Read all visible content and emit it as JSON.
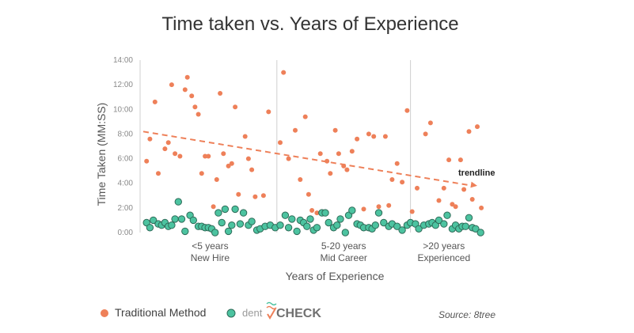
{
  "chart_data": {
    "type": "scatter",
    "title": "Time taken vs. Years of Experience",
    "xlabel": "Years of Experience",
    "ylabel": "Time Taken (MM:SS)",
    "ylim": [
      0,
      14
    ],
    "yticks": [
      "0:00",
      "2:00",
      "4:00",
      "6:00",
      "8:00",
      "10:00",
      "12:00",
      "14:00"
    ],
    "x_is_categorical_scale": true,
    "xlim": [
      0,
      1
    ],
    "groups": [
      {
        "line1": "<5 years",
        "line2": "New Hire",
        "range": [
          0.0,
          0.4
        ]
      },
      {
        "line1": "5-20 years",
        "line2": "Mid Career",
        "range": [
          0.4,
          0.8
        ]
      },
      {
        "line1": ">20 years",
        "line2": "Experienced",
        "range": [
          0.8,
          1.0
        ]
      }
    ],
    "trendline": {
      "label": "trendline",
      "from": [
        0.0,
        8.2
      ],
      "to": [
        1.0,
        3.8
      ]
    },
    "grid": false,
    "series": [
      {
        "name": "Traditional Method",
        "color": "#ee8059",
        "points": [
          [
            0.01,
            5.8
          ],
          [
            0.02,
            7.6
          ],
          [
            0.035,
            10.6
          ],
          [
            0.045,
            4.8
          ],
          [
            0.065,
            6.8
          ],
          [
            0.075,
            7.3
          ],
          [
            0.085,
            12.0
          ],
          [
            0.095,
            6.4
          ],
          [
            0.11,
            6.2
          ],
          [
            0.125,
            11.6
          ],
          [
            0.132,
            12.6
          ],
          [
            0.145,
            11.1
          ],
          [
            0.155,
            10.2
          ],
          [
            0.165,
            9.6
          ],
          [
            0.175,
            4.8
          ],
          [
            0.185,
            6.2
          ],
          [
            0.195,
            6.2
          ],
          [
            0.21,
            2.1
          ],
          [
            0.22,
            4.3
          ],
          [
            0.23,
            11.3
          ],
          [
            0.24,
            6.4
          ],
          [
            0.255,
            5.4
          ],
          [
            0.265,
            5.6
          ],
          [
            0.275,
            10.2
          ],
          [
            0.285,
            3.1
          ],
          [
            0.305,
            7.8
          ],
          [
            0.315,
            6.0
          ],
          [
            0.325,
            5.1
          ],
          [
            0.335,
            2.9
          ],
          [
            0.36,
            3.0
          ],
          [
            0.375,
            9.8
          ],
          [
            0.41,
            7.3
          ],
          [
            0.42,
            13.0
          ],
          [
            0.435,
            6.0
          ],
          [
            0.455,
            8.3
          ],
          [
            0.47,
            4.3
          ],
          [
            0.485,
            9.4
          ],
          [
            0.495,
            3.1
          ],
          [
            0.505,
            1.8
          ],
          [
            0.52,
            1.6
          ],
          [
            0.53,
            6.4
          ],
          [
            0.55,
            5.8
          ],
          [
            0.56,
            4.8
          ],
          [
            0.575,
            8.3
          ],
          [
            0.585,
            6.4
          ],
          [
            0.6,
            5.4
          ],
          [
            0.61,
            5.1
          ],
          [
            0.625,
            6.6
          ],
          [
            0.64,
            7.6
          ],
          [
            0.66,
            1.9
          ],
          [
            0.675,
            8.0
          ],
          [
            0.69,
            7.8
          ],
          [
            0.705,
            2.1
          ],
          [
            0.725,
            7.8
          ],
          [
            0.735,
            2.2
          ],
          [
            0.745,
            4.3
          ],
          [
            0.76,
            5.6
          ],
          [
            0.775,
            4.1
          ],
          [
            0.79,
            9.9
          ],
          [
            0.805,
            1.7
          ],
          [
            0.82,
            3.6
          ],
          [
            0.845,
            8.0
          ],
          [
            0.86,
            8.9
          ],
          [
            0.885,
            2.6
          ],
          [
            0.9,
            3.6
          ],
          [
            0.915,
            5.9
          ],
          [
            0.925,
            2.3
          ],
          [
            0.935,
            2.1
          ],
          [
            0.95,
            5.9
          ],
          [
            0.96,
            3.5
          ],
          [
            0.975,
            8.2
          ],
          [
            0.985,
            2.7
          ],
          [
            1.0,
            8.6
          ],
          [
            1.012,
            2.0
          ]
        ]
      },
      {
        "name": "dentCHECK",
        "color": "#4cc3a0",
        "points": [
          [
            0.01,
            0.8
          ],
          [
            0.02,
            0.4
          ],
          [
            0.03,
            1.0
          ],
          [
            0.045,
            0.7
          ],
          [
            0.055,
            0.6
          ],
          [
            0.065,
            0.8
          ],
          [
            0.075,
            0.5
          ],
          [
            0.085,
            0.6
          ],
          [
            0.095,
            1.1
          ],
          [
            0.105,
            2.5
          ],
          [
            0.115,
            1.1
          ],
          [
            0.125,
            0.1
          ],
          [
            0.14,
            1.4
          ],
          [
            0.15,
            1.0
          ],
          [
            0.165,
            0.5
          ],
          [
            0.175,
            0.5
          ],
          [
            0.185,
            0.4
          ],
          [
            0.195,
            0.4
          ],
          [
            0.205,
            0.3
          ],
          [
            0.215,
            0.0
          ],
          [
            0.225,
            1.6
          ],
          [
            0.235,
            0.8
          ],
          [
            0.245,
            1.9
          ],
          [
            0.255,
            0.1
          ],
          [
            0.265,
            0.6
          ],
          [
            0.275,
            1.9
          ],
          [
            0.29,
            0.7
          ],
          [
            0.3,
            1.6
          ],
          [
            0.315,
            0.6
          ],
          [
            0.325,
            0.9
          ],
          [
            0.34,
            0.2
          ],
          [
            0.35,
            0.3
          ],
          [
            0.365,
            0.5
          ],
          [
            0.38,
            0.6
          ],
          [
            0.395,
            0.4
          ],
          [
            0.41,
            0.6
          ],
          [
            0.425,
            1.4
          ],
          [
            0.435,
            0.4
          ],
          [
            0.445,
            1.1
          ],
          [
            0.46,
            0.1
          ],
          [
            0.47,
            1.0
          ],
          [
            0.48,
            0.8
          ],
          [
            0.49,
            0.5
          ],
          [
            0.5,
            1.1
          ],
          [
            0.51,
            0.2
          ],
          [
            0.52,
            0.4
          ],
          [
            0.535,
            1.6
          ],
          [
            0.545,
            1.6
          ],
          [
            0.555,
            0.8
          ],
          [
            0.57,
            0.4
          ],
          [
            0.58,
            0.6
          ],
          [
            0.59,
            1.1
          ],
          [
            0.605,
            0.0
          ],
          [
            0.615,
            1.4
          ],
          [
            0.625,
            1.8
          ],
          [
            0.64,
            0.7
          ],
          [
            0.65,
            0.6
          ],
          [
            0.66,
            0.4
          ],
          [
            0.675,
            0.4
          ],
          [
            0.685,
            0.3
          ],
          [
            0.695,
            0.6
          ],
          [
            0.705,
            1.6
          ],
          [
            0.72,
            0.8
          ],
          [
            0.735,
            0.5
          ],
          [
            0.745,
            0.7
          ],
          [
            0.76,
            0.5
          ],
          [
            0.775,
            0.2
          ],
          [
            0.79,
            0.6
          ],
          [
            0.8,
            0.8
          ],
          [
            0.815,
            0.7
          ],
          [
            0.825,
            0.3
          ],
          [
            0.84,
            0.6
          ],
          [
            0.855,
            0.7
          ],
          [
            0.865,
            0.8
          ],
          [
            0.875,
            0.6
          ],
          [
            0.885,
            1.0
          ],
          [
            0.9,
            0.7
          ],
          [
            0.91,
            1.4
          ],
          [
            0.925,
            0.3
          ],
          [
            0.935,
            0.6
          ],
          [
            0.945,
            0.3
          ],
          [
            0.955,
            0.5
          ],
          [
            0.965,
            0.5
          ],
          [
            0.975,
            1.2
          ],
          [
            0.985,
            0.4
          ],
          [
            0.995,
            0.3
          ],
          [
            1.01,
            0.0
          ]
        ]
      }
    ]
  },
  "legend": {
    "traditional_label": "Traditional Method",
    "logo_dent": "dent",
    "logo_check": "CHECK"
  },
  "source": "Source: 8tree"
}
